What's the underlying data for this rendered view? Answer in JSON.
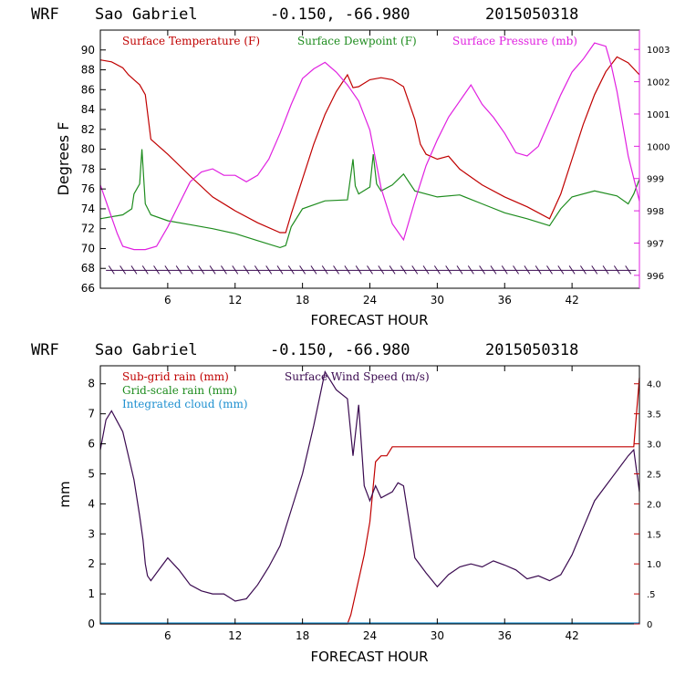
{
  "chart_data": [
    {
      "type": "line",
      "header": {
        "model": "WRF",
        "location": "Sao Gabriel",
        "coords": "-0.150, -66.980",
        "init": "2015050318"
      },
      "xlabel": "FORECAST HOUR",
      "ylabel": "Degrees F",
      "xlim": [
        0,
        48
      ],
      "xticks": [
        "6",
        "12",
        "18",
        "24",
        "30",
        "36",
        "42"
      ],
      "ylim": [
        66,
        92
      ],
      "yticks": [
        "66",
        "68",
        "70",
        "72",
        "74",
        "76",
        "78",
        "80",
        "82",
        "84",
        "86",
        "88",
        "90"
      ],
      "y2lim": [
        995.6,
        1003.6
      ],
      "y2ticks": [
        "996",
        "997",
        "998",
        "999",
        "1000",
        "1001",
        "1002",
        "1003"
      ],
      "colors": {
        "temperature": "#c00000",
        "dewpoint": "#1e8c1e",
        "pressure": "#e020e0",
        "barbs": "#3a0a50"
      },
      "series": [
        {
          "name": "Surface Temperature (F)",
          "color": "#c00000",
          "axis": "left",
          "x": [
            0,
            1,
            2,
            2.5,
            3,
            3.5,
            4,
            4.5,
            6,
            8,
            10,
            12,
            14,
            16,
            16.5,
            17,
            18,
            19,
            20,
            21,
            22,
            22.5,
            23,
            24,
            25,
            26,
            27,
            28,
            28.5,
            29,
            30,
            31,
            32,
            34,
            36,
            38,
            40,
            41,
            42,
            43,
            44,
            45,
            46,
            47,
            48
          ],
          "values": [
            89,
            88.8,
            88.2,
            87.5,
            87,
            86.5,
            85.5,
            81,
            79.5,
            77.3,
            75.2,
            73.8,
            72.6,
            71.6,
            71.6,
            73.5,
            77,
            80.5,
            83.5,
            85.8,
            87.5,
            86.2,
            86.3,
            87,
            87.2,
            87,
            86.3,
            83,
            80.5,
            79.5,
            79,
            79.3,
            78,
            76.4,
            75.2,
            74.2,
            73,
            75.5,
            79,
            82.5,
            85.5,
            87.8,
            89.3,
            88.7,
            87.5
          ]
        },
        {
          "name": "Surface Dewpoint (F)",
          "color": "#1e8c1e",
          "axis": "left",
          "x": [
            0,
            2,
            2.8,
            3,
            3.5,
            3.7,
            4,
            4.5,
            6,
            8,
            10,
            12,
            14,
            16,
            16.5,
            17,
            18,
            20,
            22,
            22.5,
            22.7,
            23,
            24,
            24.3,
            24.6,
            25,
            26,
            27,
            28,
            30,
            32,
            34,
            36,
            38,
            40,
            41,
            42,
            44,
            46,
            47,
            47.5,
            48
          ],
          "values": [
            73,
            73.4,
            74,
            75.5,
            76.5,
            80,
            74.5,
            73.4,
            72.8,
            72.4,
            72,
            71.5,
            70.8,
            70.1,
            70.3,
            72.2,
            74,
            74.8,
            74.9,
            79,
            76.3,
            75.5,
            76.2,
            79.5,
            76.5,
            75.8,
            76.4,
            77.5,
            75.8,
            75.2,
            75.4,
            74.5,
            73.6,
            73,
            72.3,
            74,
            75.2,
            75.8,
            75.3,
            74.5,
            75.5,
            77
          ]
        },
        {
          "name": "Surface Pressure (mb)",
          "color": "#e020e0",
          "axis": "right",
          "x": [
            0,
            0.5,
            1,
            1.5,
            2,
            3,
            4,
            5,
            6,
            7,
            8,
            9,
            10,
            11,
            12,
            13,
            14,
            15,
            16,
            17,
            18,
            19,
            20,
            21,
            22,
            23,
            24,
            25,
            26,
            27,
            28,
            29,
            30,
            31,
            32,
            33,
            34,
            35,
            36,
            37,
            38,
            39,
            40,
            41,
            42,
            43,
            44,
            45,
            45.5,
            46,
            47,
            48
          ],
          "values": [
            998.8,
            998.3,
            997.8,
            997.3,
            996.9,
            996.8,
            996.8,
            996.9,
            997.5,
            998.2,
            998.9,
            999.2,
            999.3,
            999.1,
            999.1,
            998.9,
            999.1,
            999.6,
            1000.4,
            1001.3,
            1002.1,
            1002.4,
            1002.6,
            1002.3,
            1001.9,
            1001.4,
            1000.5,
            998.7,
            997.6,
            997.1,
            998.3,
            999.4,
            1000.2,
            1000.9,
            1001.4,
            1001.9,
            1001.3,
            1000.9,
            1000.4,
            999.8,
            999.7,
            1000.0,
            1000.8,
            1001.6,
            1002.3,
            1002.7,
            1003.2,
            1003.1,
            1002.5,
            1001.7,
            999.7,
            998.3
          ]
        }
      ],
      "legend": [
        "Surface Temperature (F)",
        "Surface Dewpoint (F)",
        "Surface Pressure (mb)"
      ],
      "wind_barbs": {
        "y": 67.8,
        "hours": [
          1,
          2,
          3,
          4,
          5,
          6,
          7,
          8,
          9,
          10,
          11,
          12,
          13,
          14,
          15,
          16,
          17,
          18,
          19,
          20,
          21,
          22,
          23,
          24,
          25,
          26,
          27,
          28,
          29,
          30,
          31,
          32,
          33,
          34,
          35,
          36,
          37,
          38,
          39,
          40,
          41,
          42,
          43,
          44,
          45,
          46,
          47
        ]
      }
    },
    {
      "type": "line",
      "header": {
        "model": "WRF",
        "location": "Sao Gabriel",
        "coords": "-0.150, -66.980",
        "init": "2015050318"
      },
      "xlabel": "FORECAST HOUR",
      "ylabel": "mm",
      "xlim": [
        0,
        48
      ],
      "xticks": [
        "6",
        "12",
        "18",
        "24",
        "30",
        "36",
        "42"
      ],
      "ylim": [
        0,
        8.6
      ],
      "yticks": [
        "0",
        "1",
        "2",
        "3",
        "4",
        "5",
        "6",
        "7",
        "8"
      ],
      "y2lim": [
        0,
        4.3
      ],
      "y2ticks": [
        "0",
        ".5",
        "1.0",
        "1.5",
        "2.0",
        "2.5",
        "3.0",
        "3.5",
        "4.0"
      ],
      "colors": {
        "subgrid": "#c00000",
        "gridscale": "#1e8c1e",
        "cloud": "#1e90d0",
        "wind": "#3a0a50"
      },
      "series": [
        {
          "name": "Sub-grid rain (mm)",
          "color": "#c00000",
          "axis": "left",
          "x": [
            0,
            22,
            22.3,
            23.5,
            24,
            24.5,
            25,
            25.5,
            26,
            47.5,
            48
          ],
          "values": [
            0,
            0,
            0.3,
            2.3,
            3.4,
            5.4,
            5.6,
            5.6,
            5.9,
            5.9,
            8.2
          ]
        },
        {
          "name": "Grid-scale rain (mm)",
          "color": "#1e8c1e",
          "axis": "left",
          "x": [
            0,
            48
          ],
          "values": [
            0.02,
            0.02
          ]
        },
        {
          "name": "Integrated cloud (mm)",
          "color": "#1e90d0",
          "axis": "left",
          "x": [
            0,
            48
          ],
          "values": [
            0.03,
            0.03
          ]
        },
        {
          "name": "Surface Wind Speed (m/s)",
          "color": "#3a0a50",
          "axis": "right",
          "x": [
            0,
            0.5,
            1,
            2,
            3,
            3.5,
            3.8,
            4,
            4.2,
            4.5,
            5,
            6,
            7,
            8,
            9,
            10,
            11,
            12,
            13,
            14,
            15,
            16,
            17,
            18,
            19,
            20,
            21,
            22,
            22.5,
            23,
            23.5,
            24,
            24.5,
            25,
            26,
            26.5,
            27,
            28,
            29,
            30,
            31,
            32,
            33,
            34,
            35,
            36,
            37,
            38,
            39,
            40,
            41,
            42,
            43,
            44,
            45,
            46,
            47,
            47.5,
            48
          ],
          "values": [
            2.9,
            3.4,
            3.55,
            3.2,
            2.4,
            1.8,
            1.4,
            1.0,
            0.8,
            0.72,
            0.85,
            1.1,
            0.9,
            0.65,
            0.55,
            0.5,
            0.5,
            0.38,
            0.42,
            0.65,
            0.95,
            1.3,
            1.9,
            2.5,
            3.3,
            4.2,
            3.9,
            3.75,
            2.8,
            3.65,
            2.3,
            2.05,
            2.3,
            2.1,
            2.2,
            2.35,
            2.3,
            1.1,
            0.85,
            0.62,
            0.82,
            0.95,
            1.0,
            0.95,
            1.05,
            0.98,
            0.9,
            0.75,
            0.8,
            0.72,
            0.82,
            1.15,
            1.6,
            2.05,
            2.3,
            2.55,
            2.8,
            2.9,
            2.2
          ]
        }
      ],
      "legend": [
        "Sub-grid rain (mm)",
        "Surface Wind Speed (m/s)",
        "Grid-scale rain (mm)",
        "Integrated cloud (mm)"
      ]
    }
  ]
}
